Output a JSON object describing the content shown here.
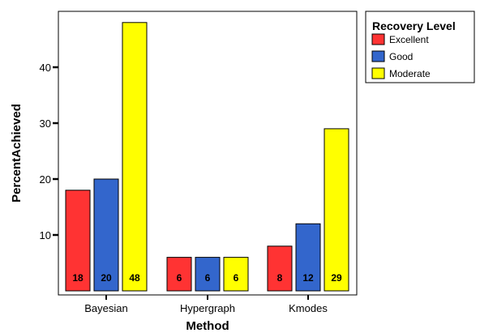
{
  "colors": {
    "Excellent": "#ff3333",
    "Good": "#3366cc",
    "Moderate": "#ffff00"
  },
  "chart_data": {
    "type": "bar",
    "xlabel": "Method",
    "ylabel": "PercentAchieved",
    "categories": [
      "Bayesian",
      "Hypergraph",
      "Kmodes"
    ],
    "series": [
      {
        "name": "Excellent",
        "values": [
          18,
          6,
          8
        ],
        "labels": [
          "18",
          "6",
          "8"
        ]
      },
      {
        "name": "Good",
        "values": [
          20,
          6,
          12
        ],
        "labels": [
          "20",
          "6",
          "12"
        ]
      },
      {
        "name": "Moderate",
        "values": [
          48,
          6,
          29
        ],
        "labels": [
          "48",
          "6",
          "29"
        ]
      }
    ],
    "yticks": [
      10,
      20,
      30,
      40
    ],
    "ylim": [
      0,
      50
    ],
    "grid": false,
    "legend": {
      "title": "Recovery Level",
      "position": "top-right",
      "entries": [
        "Excellent",
        "Good",
        "Moderate"
      ]
    }
  }
}
